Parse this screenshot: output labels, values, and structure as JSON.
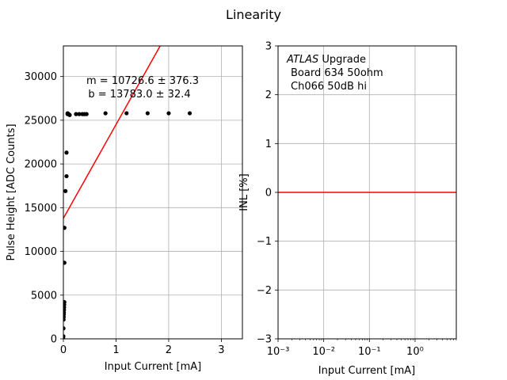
{
  "figure": {
    "suptitle": "Linearity"
  },
  "chart_data": [
    {
      "type": "scatter",
      "xlabel": "Input Current [mA]",
      "ylabel": "Pulse Height [ADC Counts]",
      "xlim": [
        0,
        3.4
      ],
      "ylim": [
        0,
        33500
      ],
      "xticks": [
        0,
        1,
        2,
        3
      ],
      "yticks": [
        0,
        5000,
        10000,
        15000,
        20000,
        25000,
        30000
      ],
      "grid": true,
      "annotation": [
        "m = 10726.6 ± 376.3",
        "b = 13783.0 ± 32.4"
      ],
      "series": [
        {
          "kind": "points",
          "color": "#000000",
          "x": [
            0.0,
            0.0,
            0.002,
            0.004,
            0.006,
            0.008,
            0.01,
            0.012,
            0.014,
            0.016,
            0.018,
            0.02,
            0.02,
            0.04,
            0.06,
            0.06,
            0.08,
            0.08,
            0.1,
            0.12,
            0.24,
            0.3,
            0.36,
            0.4,
            0.44,
            0.8,
            1.2,
            1.6,
            2.0,
            2.4
          ],
          "y": [
            0,
            300,
            1200,
            2200,
            2500,
            2800,
            3000,
            3300,
            3600,
            3900,
            4200,
            8700,
            12700,
            16900,
            18600,
            21300,
            25800,
            25700,
            25700,
            25600,
            25700,
            25700,
            25700,
            25700,
            25700,
            25800,
            25800,
            25800,
            25800,
            25800
          ]
        },
        {
          "kind": "fit-line",
          "color": "#ff0000",
          "slope": 10726.6,
          "intercept": 13783.0
        }
      ]
    },
    {
      "type": "line",
      "xlabel": "Input Current [mA]",
      "ylabel": "INL [%]",
      "xscale": "log",
      "xlim": [
        0.001,
        8
      ],
      "ylim": [
        -3,
        3
      ],
      "xticks": [
        "10⁻³",
        "10⁻²",
        "10⁻¹",
        "10⁰"
      ],
      "yticks": [
        -3,
        -2,
        -1,
        0,
        1,
        2,
        3
      ],
      "grid": true,
      "annotation": [
        "ATLAS",
        " Upgrade",
        "Board 634 50ohm",
        "Ch066 50dB hi"
      ],
      "series": [
        {
          "kind": "line",
          "color": "#ff0000",
          "x": [
            0.001,
            8
          ],
          "y": [
            0,
            0
          ]
        }
      ]
    }
  ]
}
